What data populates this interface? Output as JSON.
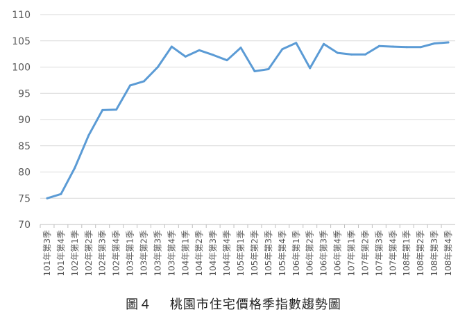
{
  "caption": "圖４　 桃園市住宅價格季指數趨勢圖",
  "chart_data": {
    "type": "line",
    "title": "",
    "xlabel": "",
    "ylabel": "",
    "ylim": [
      70,
      110
    ],
    "yticks": [
      70,
      75,
      80,
      85,
      90,
      95,
      100,
      105,
      110
    ],
    "grid": "horizontal",
    "legend": "none",
    "categories": [
      "101年第3季",
      "101年第4季",
      "102年第1季",
      "102年第2季",
      "102年第3季",
      "102年第4季",
      "103年第1季",
      "103年第2季",
      "103年第3季",
      "103年第4季",
      "104年第1季",
      "104年第2季",
      "104年第3季",
      "104年第4季",
      "105年第1季",
      "105年第2季",
      "105年第3季",
      "105年第4季",
      "106年第1季",
      "106年第2季",
      "106年第3季",
      "106年第4季",
      "107年第1季",
      "107年第2季",
      "107年第3季",
      "107年第4季",
      "108年第1季",
      "108年第2季",
      "108年第3季",
      "108年第4季"
    ],
    "series": [
      {
        "values": [
          75.0,
          75.8,
          80.8,
          87.0,
          91.8,
          91.9,
          96.5,
          97.3,
          100.0,
          103.9,
          102.0,
          103.2,
          102.3,
          101.3,
          103.7,
          99.2,
          99.6,
          103.4,
          104.6,
          99.8,
          104.4,
          102.7,
          102.4,
          102.4,
          104.0,
          103.9,
          103.8,
          103.8,
          104.5,
          104.7
        ]
      }
    ],
    "colors": {
      "line": "#5b9bd5",
      "grid": "#d9d9d9",
      "text": "#595959"
    }
  }
}
